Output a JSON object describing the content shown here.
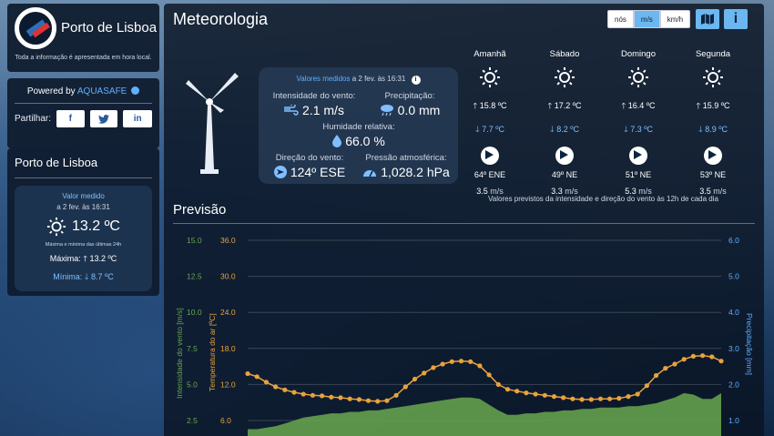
{
  "brand": {
    "title": "Porto de Lisboa",
    "subtitle": "Toda a informação é apresentada em hora local."
  },
  "powered": {
    "label": "Powered by",
    "brand": "AQUASAFE",
    "share_label": "Partilhar:",
    "share_buttons": [
      {
        "icon": "facebook-icon",
        "glyph": "f"
      },
      {
        "icon": "twitter-icon",
        "glyph": "t"
      },
      {
        "icon": "linkedin-icon",
        "glyph": "in"
      }
    ]
  },
  "station": {
    "title": "Porto de Lisboa",
    "measured_label": "Valor medido",
    "measured_date": "a 2 fev. às 16:31",
    "temperature": "13.2 ºC",
    "note": "Máxima e mínima das últimas 24h",
    "max_label": "Máxima:",
    "max_value": "13.2 ºC",
    "min_label": "Mínima:",
    "min_value": "8.7 ºC",
    "arrow_up": "🡑",
    "arrow_down": "🡓"
  },
  "main": {
    "title": "Meteorologia",
    "units": [
      "nós",
      "m/s",
      "km/h"
    ],
    "active_unit": "m/s",
    "map_icon": "map-icon",
    "info_icon": "info-icon",
    "info_glyph": "i"
  },
  "observed": {
    "header": "Valores medidos",
    "header_date": "a 2 fev. às 16:31",
    "wind_speed_label": "Intensidade do vento:",
    "wind_speed": "2.1 m/s",
    "precip_label": "Precipitação:",
    "precip": "0.0 mm",
    "humidity_label": "Humidade relativa:",
    "humidity": "66.0 %",
    "wind_dir_label": "Direção do vento:",
    "wind_dir": "124º ESE",
    "pressure_label": "Pressão atmosférica:",
    "pressure": "1,028.2 hPa",
    "icons": {
      "wind": "wind-icon",
      "rain": "rain-cloud-icon",
      "humidity": "droplet-icon",
      "direction": "compass-arrow-icon",
      "pressure": "gauge-icon"
    }
  },
  "forecast": {
    "days": [
      {
        "day": "Amanhã",
        "max": "15.8 ºC",
        "min": "7.7 ºC",
        "dir": "64º ENE",
        "speed": "3.5",
        "unit": "m/s"
      },
      {
        "day": "Sábado",
        "max": "17.2 ºC",
        "min": "8.2 ºC",
        "dir": "49º NE",
        "speed": "3.3",
        "unit": "m/s"
      },
      {
        "day": "Domingo",
        "max": "16.4 ºC",
        "min": "7.3 ºC",
        "dir": "51º NE",
        "speed": "5.3",
        "unit": "m/s"
      },
      {
        "day": "Segunda",
        "max": "15.9 ºC",
        "min": "8.9 ºC",
        "dir": "53º NE",
        "speed": "3.5",
        "unit": "m/s"
      }
    ],
    "note": "Valores previstos da intensidade e direção do vento às 12h de cada dia",
    "arrow_up": "🡑",
    "arrow_down": "🡓"
  },
  "previsao": {
    "title": "Previsão"
  },
  "chart_data": {
    "type": "line",
    "axes": {
      "wind_label": "Intensidade do vento [m/s]",
      "temp_label": "Temperatura do ar [ºC]",
      "precip_label": "Precipitação [mm]",
      "wind_ticks": [
        "15.0",
        "12.5",
        "10.0",
        "7.5",
        "5.0",
        "2.5"
      ],
      "temp_ticks": [
        "36.0",
        "30.0",
        "24.0",
        "18.0",
        "12.0",
        "6.0"
      ],
      "precip_ticks": [
        "6.0",
        "5.0",
        "4.0",
        "3.0",
        "2.0",
        "1.0"
      ],
      "temp_range": [
        0,
        36
      ],
      "wind_range": [
        0,
        15
      ],
      "colors": {
        "wind": "#6aa84f",
        "temp": "#e8a33d",
        "precip": "#5fb0ff"
      }
    },
    "series": [
      {
        "name": "Temperatura do ar",
        "values": [
          13.8,
          13.3,
          12.4,
          11.6,
          11.1,
          10.7,
          10.4,
          10.2,
          10.1,
          9.9,
          9.8,
          9.6,
          9.5,
          9.3,
          9.2,
          9.3,
          10.2,
          11.6,
          12.9,
          13.9,
          14.8,
          15.4,
          15.8,
          15.9,
          15.8,
          15.1,
          13.6,
          12.0,
          11.2,
          10.9,
          10.6,
          10.4,
          10.2,
          10.0,
          9.8,
          9.6,
          9.5,
          9.5,
          9.6,
          9.6,
          9.7,
          10.0,
          10.4,
          11.8,
          13.5,
          14.7,
          15.4,
          16.2,
          16.7,
          16.8,
          16.6,
          15.9
        ]
      },
      {
        "name": "Intensidade do vento",
        "values": [
          1.9,
          1.9,
          2.0,
          2.1,
          2.3,
          2.5,
          2.7,
          2.8,
          2.9,
          3.0,
          3.0,
          3.1,
          3.1,
          3.2,
          3.2,
          3.3,
          3.4,
          3.5,
          3.6,
          3.7,
          3.8,
          3.9,
          4.0,
          4.1,
          4.1,
          4.0,
          3.6,
          3.2,
          2.9,
          2.9,
          3.0,
          3.0,
          3.1,
          3.1,
          3.2,
          3.2,
          3.3,
          3.3,
          3.4,
          3.4,
          3.4,
          3.5,
          3.5,
          3.6,
          3.7,
          3.9,
          4.1,
          4.4,
          4.3,
          4.0,
          4.0,
          4.4
        ]
      }
    ]
  }
}
